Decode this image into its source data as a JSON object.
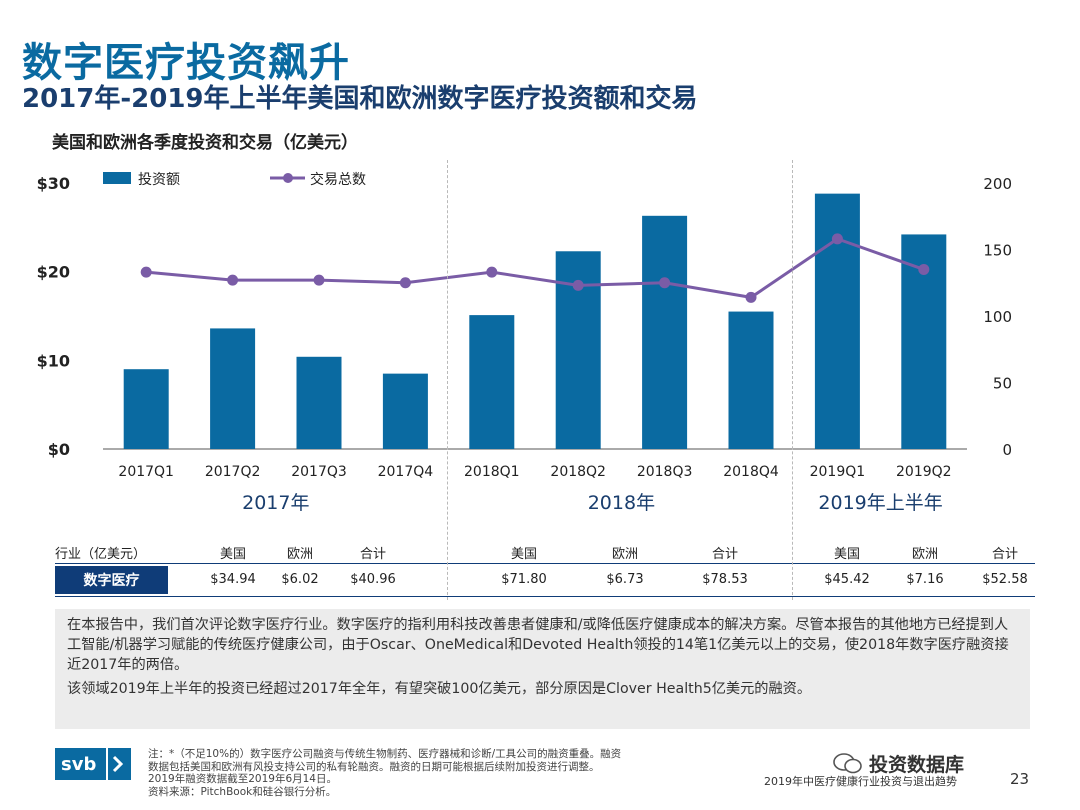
{
  "header": {
    "title": "数字医疗投资飙升",
    "subtitle": "2017年-2019年上半年美国和欧洲数字医疗投资额和交易"
  },
  "chart_data": {
    "type": "bar",
    "title": "美国和欧洲各季度投资和交易（亿美元）",
    "categories": [
      "2017Q1",
      "2017Q2",
      "2017Q3",
      "2017Q4",
      "2018Q1",
      "2018Q2",
      "2018Q3",
      "2018Q4",
      "2019Q1",
      "2019Q2"
    ],
    "series": [
      {
        "name": "投资额",
        "kind": "bar",
        "axis": "left",
        "color": "#0a6aa1",
        "values": [
          9.0,
          13.6,
          10.4,
          8.5,
          15.1,
          22.3,
          26.3,
          15.5,
          28.8,
          24.2
        ]
      },
      {
        "name": "交易总数",
        "kind": "line",
        "axis": "right",
        "color": "#7a5ca6",
        "values": [
          133,
          127,
          127,
          125,
          133,
          123,
          125,
          114,
          158,
          135
        ]
      }
    ],
    "ylim_left": [
      0,
      30
    ],
    "ylim_right": [
      0,
      200
    ],
    "yticks_left": [
      0,
      10,
      20,
      30
    ],
    "yticks_left_labels": [
      "$0",
      "$10",
      "$20",
      "$30"
    ],
    "yticks_right": [
      0,
      50,
      100,
      150,
      200
    ],
    "yticks_right_labels": [
      "0",
      "50",
      "100",
      "150",
      "200"
    ],
    "year_groups": [
      {
        "label": "2017年",
        "start": 0,
        "end": 3
      },
      {
        "label": "2018年",
        "start": 4,
        "end": 7
      },
      {
        "label": "2019年上半年",
        "start": 8,
        "end": 9
      }
    ],
    "legend_position": "top-left"
  },
  "table": {
    "row_header": "行业（亿美元）",
    "row_label": "数字医疗",
    "groups": [
      {
        "cols": [
          "美国",
          "欧洲",
          "合计"
        ],
        "values": [
          "$34.94",
          "$6.02",
          "$40.96"
        ]
      },
      {
        "cols": [
          "美国",
          "欧洲",
          "合计"
        ],
        "values": [
          "$71.80",
          "$6.73",
          "$78.53"
        ]
      },
      {
        "cols": [
          "美国",
          "欧洲",
          "合计"
        ],
        "values": [
          "$45.42",
          "$7.16",
          "$52.58"
        ]
      }
    ]
  },
  "note": {
    "para1": "在本报告中，我们首次评论数字医疗行业。数字医疗的指利用科技改善患者健康和/或降低医疗健康成本的解决方案。尽管本报告的其他地方已经提到人工智能/机器学习赋能的传统医疗健康公司，由于Oscar、OneMedical和Devoted Health领投的14笔1亿美元以上的交易，使2018年数字医疗融资接近2017年的两倍。",
    "para2": "该领域2019年上半年的投资已经超过2017年全年，有望突破100亿美元，部分原因是Clover Health5亿美元的融资。"
  },
  "footer": {
    "logo_text": "svb",
    "footnote_lines": [
      "注：*（不足10%的）数字医疗公司融资与传统生物制药、医疗器械和诊断/工具公司的融资重叠。融资",
      "数据包括美国和欧洲有风投支持公司的私有轮融资。融资的日期可能根据后续附加投资进行调整。",
      "2019年融资数据截至2019年6月14日。",
      "资料来源：PitchBook和硅谷银行分析。"
    ],
    "watermark": "投资数据库",
    "report_title": "2019年中医疗健康行业投资与退出趋势",
    "page_number": "23"
  }
}
